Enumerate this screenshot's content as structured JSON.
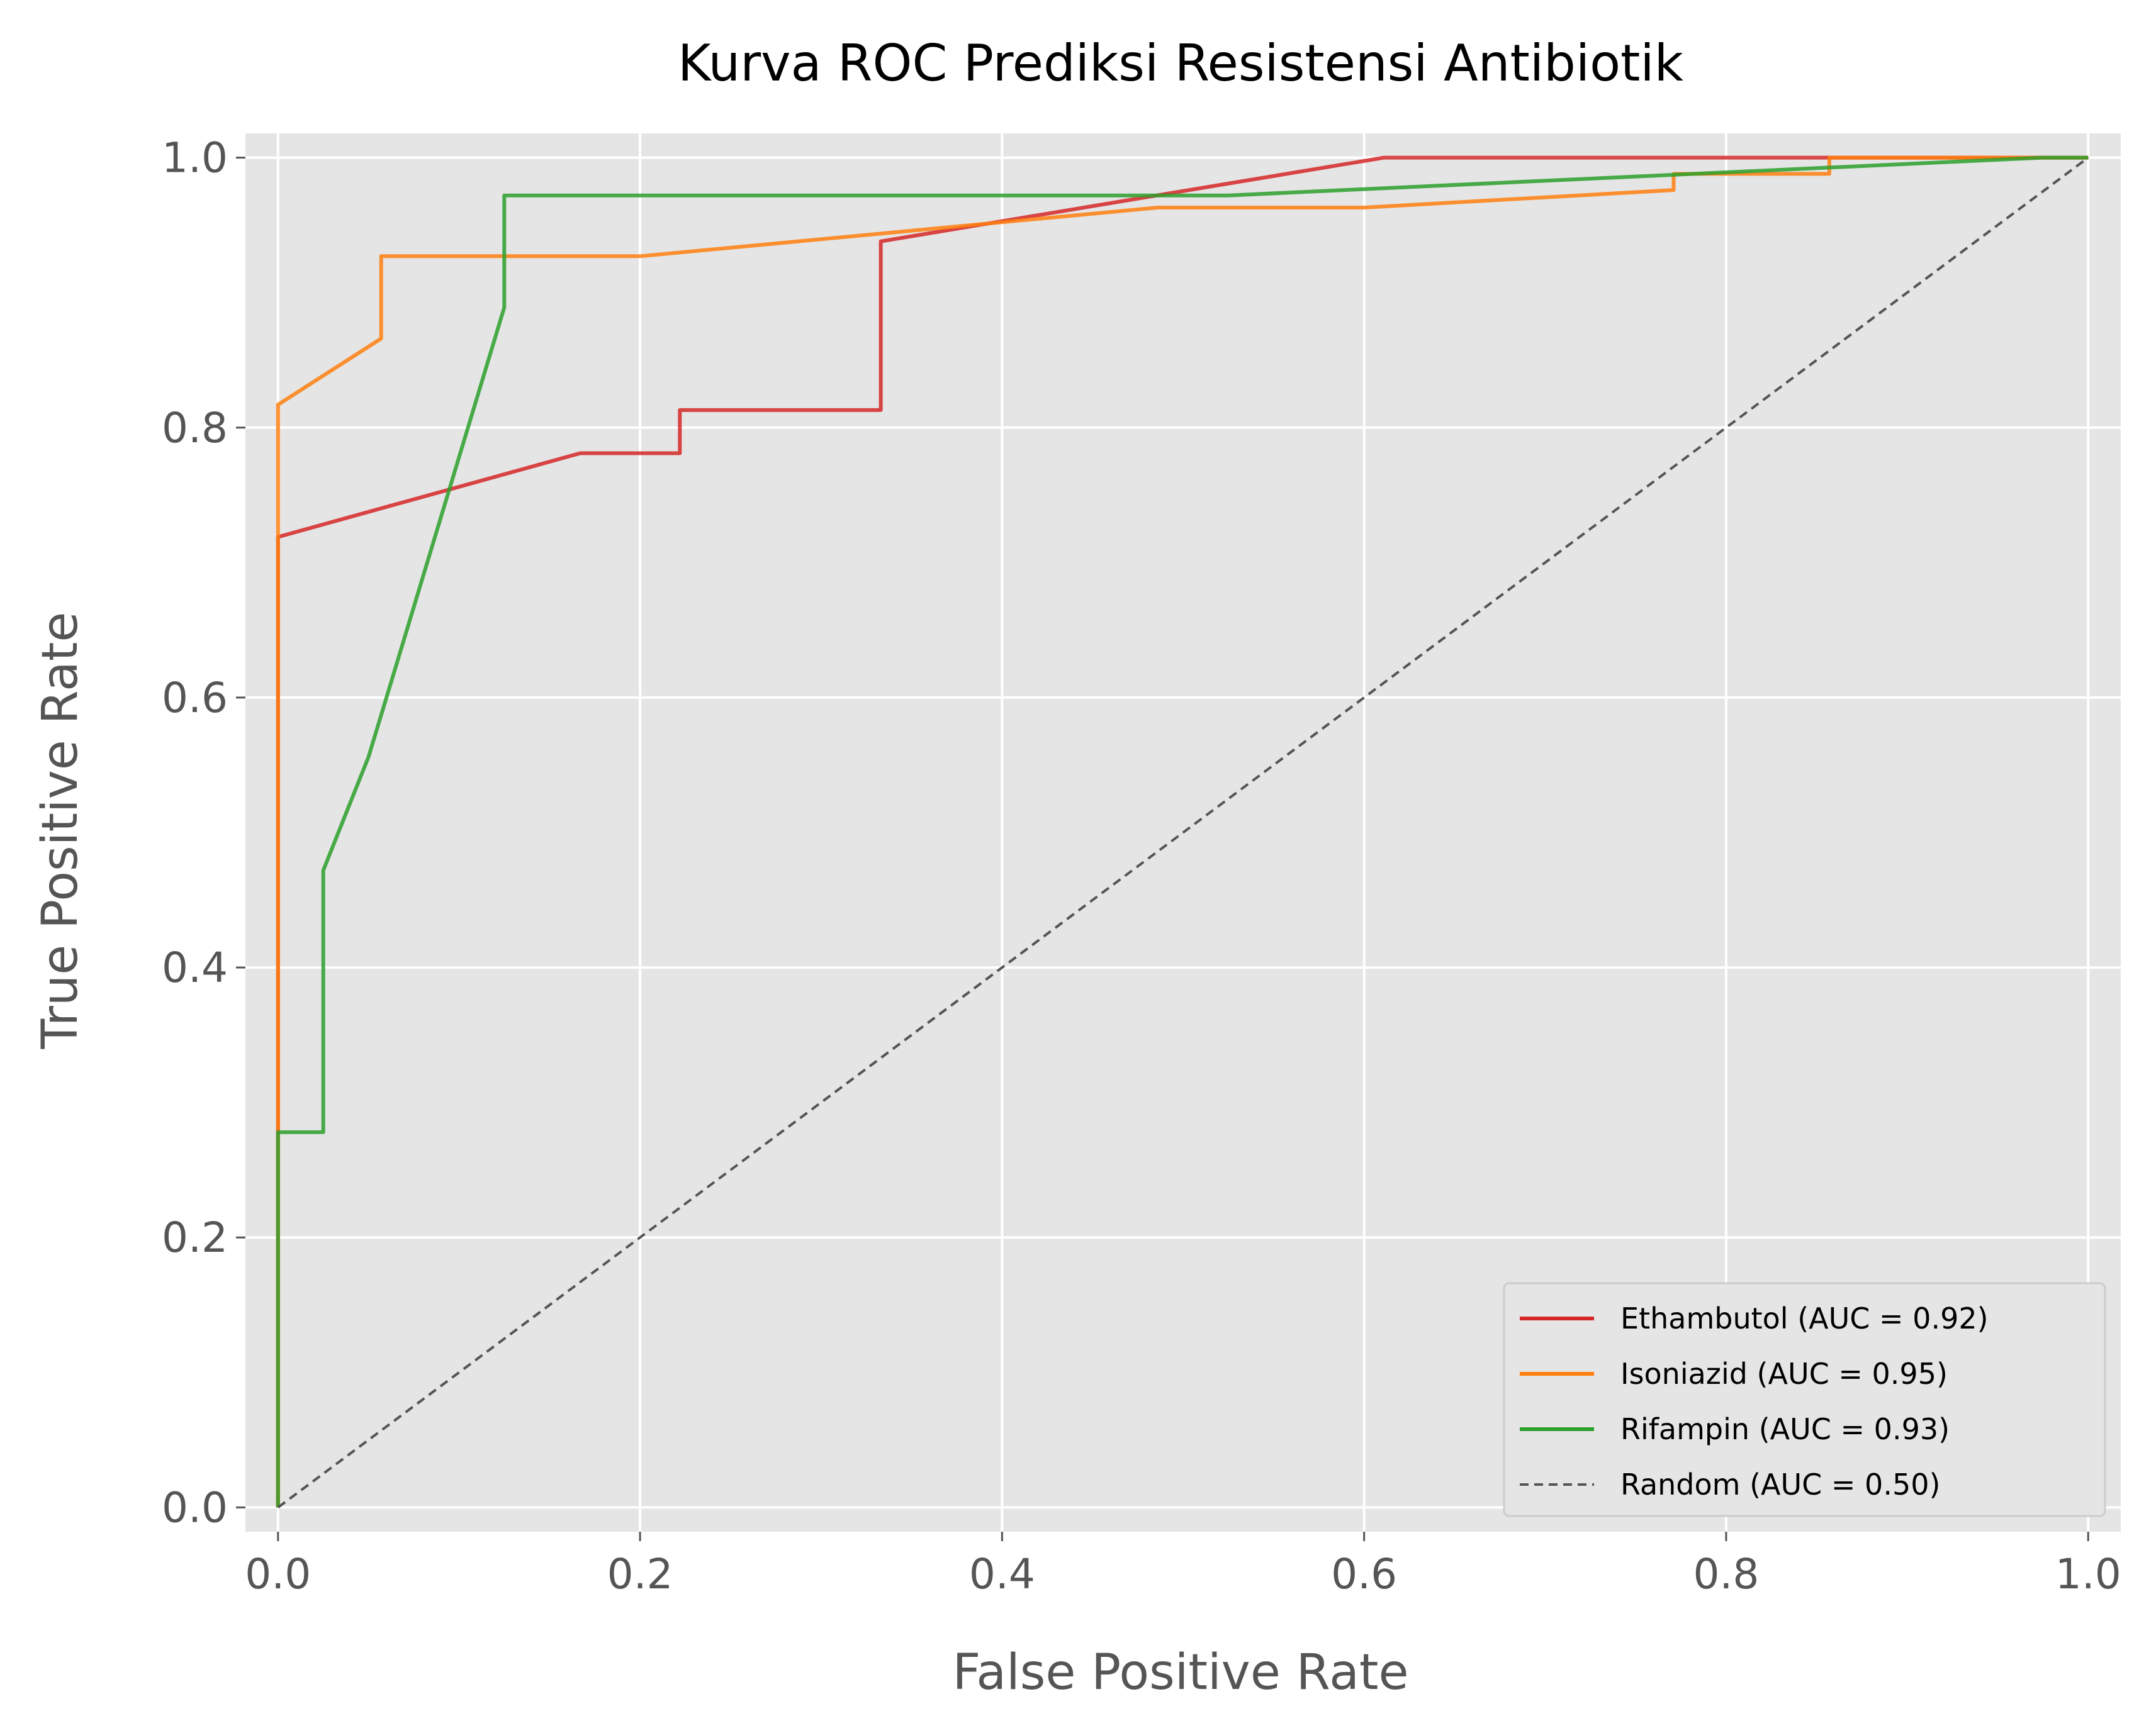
{
  "chart_data": {
    "type": "line",
    "title": "Kurva ROC Prediksi Resistensi Antibiotik",
    "xlabel": "False Positive Rate",
    "ylabel": "True Positive Rate",
    "xlim": [
      -0.018,
      1.018
    ],
    "ylim": [
      -0.018,
      1.018
    ],
    "x_ticks": [
      "0.0",
      "0.2",
      "0.4",
      "0.6",
      "0.8",
      "1.0"
    ],
    "y_ticks": [
      "0.0",
      "0.2",
      "0.4",
      "0.6",
      "0.8",
      "1.0"
    ],
    "grid": true,
    "legend_position": "lower-right",
    "colors": {
      "plot_background": "#e5e5e5",
      "grid": "#ffffff",
      "ethambutol": "#d62728",
      "isoniazid": "#ff7f0e",
      "rifampin": "#2ca02c",
      "random": "#555555"
    },
    "series": [
      {
        "name": "Ethambutol (AUC = 0.92)",
        "color": "#d62728",
        "style": "solid",
        "points": [
          [
            0,
            0
          ],
          [
            0,
            0.719
          ],
          [
            0.167,
            0.781
          ],
          [
            0.222,
            0.781
          ],
          [
            0.222,
            0.813
          ],
          [
            0.333,
            0.813
          ],
          [
            0.333,
            0.938
          ],
          [
            0.611,
            1.0
          ],
          [
            1.0,
            1.0
          ]
        ]
      },
      {
        "name": "Isoniazid (AUC = 0.95)",
        "color": "#ff7f0e",
        "style": "solid",
        "points": [
          [
            0,
            0
          ],
          [
            0,
            0.817
          ],
          [
            0.057,
            0.866
          ],
          [
            0.057,
            0.927
          ],
          [
            0.2,
            0.927
          ],
          [
            0.486,
            0.963
          ],
          [
            0.6,
            0.963
          ],
          [
            0.771,
            0.976
          ],
          [
            0.771,
            0.988
          ],
          [
            0.857,
            0.988
          ],
          [
            0.857,
            1.0
          ],
          [
            1.0,
            1.0
          ]
        ]
      },
      {
        "name": "Rifampin (AUC = 0.93)",
        "color": "#2ca02c",
        "style": "solid",
        "points": [
          [
            0,
            0
          ],
          [
            0,
            0.278
          ],
          [
            0.025,
            0.278
          ],
          [
            0.025,
            0.472
          ],
          [
            0.05,
            0.556
          ],
          [
            0.125,
            0.889
          ],
          [
            0.125,
            0.972
          ],
          [
            0.525,
            0.972
          ],
          [
            0.975,
            1.0
          ],
          [
            1.0,
            1.0
          ]
        ]
      },
      {
        "name": "Random (AUC = 0.50)",
        "color": "#555555",
        "style": "dashed",
        "points": [
          [
            0,
            0
          ],
          [
            1,
            1
          ]
        ]
      }
    ]
  }
}
